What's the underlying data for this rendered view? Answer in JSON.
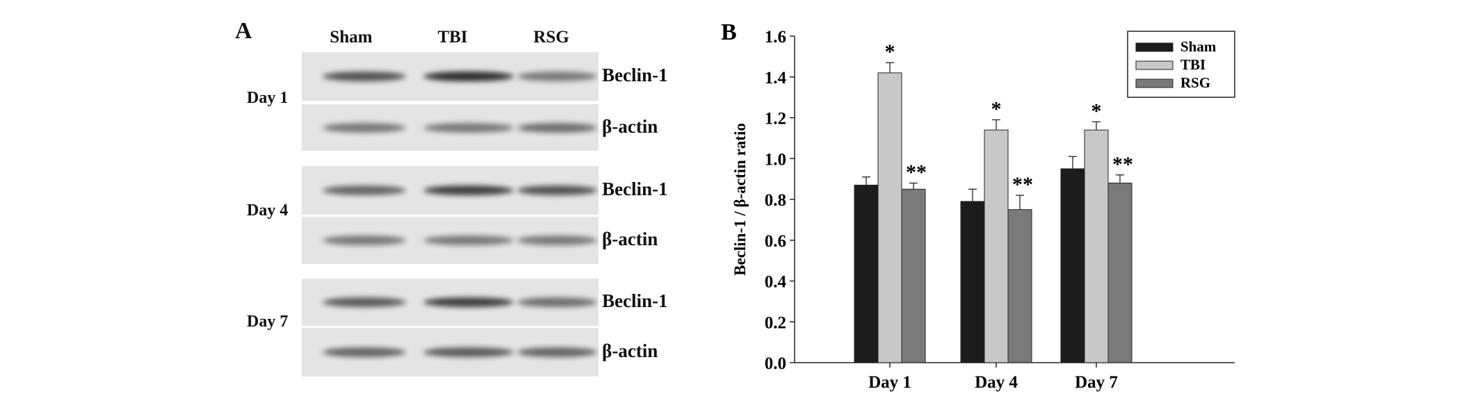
{
  "panel_a": {
    "letter": "A",
    "lanes": [
      "Sham",
      "TBI",
      "RSG"
    ],
    "days": [
      {
        "label": "Day 1",
        "rows": [
          {
            "label": "Beclin-1",
            "intensity": [
              0.75,
              0.95,
              0.55
            ]
          },
          {
            "label": "β-actin",
            "intensity": [
              0.55,
              0.55,
              0.6
            ]
          }
        ]
      },
      {
        "label": "Day 4",
        "rows": [
          {
            "label": "Beclin-1",
            "intensity": [
              0.65,
              0.85,
              0.75
            ]
          },
          {
            "label": "β-actin",
            "intensity": [
              0.55,
              0.55,
              0.55
            ]
          }
        ]
      },
      {
        "label": "Day 7",
        "rows": [
          {
            "label": "Beclin-1",
            "intensity": [
              0.7,
              0.85,
              0.6
            ]
          },
          {
            "label": "β-actin",
            "intensity": [
              0.65,
              0.7,
              0.65
            ]
          }
        ]
      }
    ]
  },
  "chart_data": {
    "type": "bar",
    "panel_letter": "B",
    "categories": [
      "Day 1",
      "Day 4",
      "Day 7"
    ],
    "series": [
      {
        "name": "Sham",
        "color": "#1c1c1c",
        "values": [
          0.87,
          0.79,
          0.95
        ],
        "errors": [
          0.04,
          0.06,
          0.06
        ],
        "annotations": [
          "",
          "",
          ""
        ]
      },
      {
        "name": "TBI",
        "color": "#c8c8c8",
        "values": [
          1.42,
          1.14,
          1.14
        ],
        "errors": [
          0.05,
          0.05,
          0.04
        ],
        "annotations": [
          "*",
          "*",
          "*"
        ]
      },
      {
        "name": "RSG",
        "color": "#7a7a7a",
        "values": [
          0.85,
          0.75,
          0.88
        ],
        "errors": [
          0.03,
          0.07,
          0.04
        ],
        "annotations": [
          "**",
          "**",
          "**"
        ]
      }
    ],
    "ylabel": "Beclin-1 / β-actin ratio",
    "xlabel": "",
    "ylim": [
      0,
      1.6
    ],
    "yticks": [
      "0.0",
      "0.2",
      "0.4",
      "0.6",
      "0.8",
      "1.0",
      "1.2",
      "1.4",
      "1.6"
    ],
    "grid": false,
    "legend_position": "top-right"
  }
}
